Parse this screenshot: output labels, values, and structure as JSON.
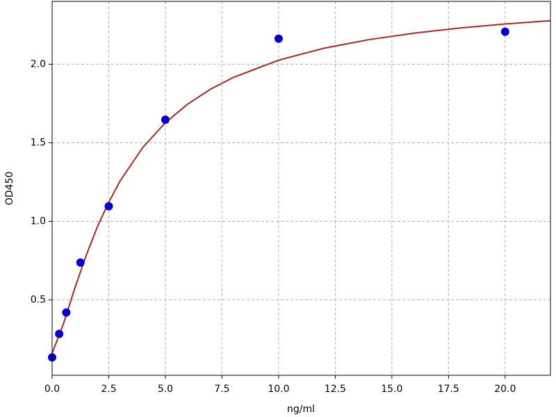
{
  "chart_data": {
    "type": "scatter",
    "xlabel": "ng/ml",
    "ylabel": "OD450",
    "xlim": [
      0,
      22
    ],
    "ylim": [
      0.02,
      2.4
    ],
    "xticks": [
      {
        "value": 0,
        "label": "0.0"
      },
      2.5,
      {
        "value": 5,
        "label": "5.0"
      },
      7.5,
      {
        "value": 10,
        "label": "10.0"
      },
      12.5,
      {
        "value": 15,
        "label": "15.0"
      },
      17.5,
      {
        "value": 20,
        "label": "20.0"
      }
    ],
    "yticks": [
      0.5,
      {
        "value": 1,
        "label": "1.0"
      },
      1.5,
      {
        "value": 2,
        "label": "2.0"
      }
    ],
    "grid": true,
    "series": [
      {
        "type": "scatter",
        "color": "#0000cc",
        "x": [
          0,
          0.3125,
          0.625,
          1.25,
          2.5,
          5,
          10,
          20
        ],
        "values": [
          0.134,
          0.284,
          0.42,
          0.738,
          1.096,
          1.647,
          2.163,
          2.207
        ]
      },
      {
        "type": "line",
        "color": "#b22222",
        "x": [
          0,
          0.5,
          1,
          1.5,
          2,
          2.5,
          3,
          4,
          5,
          6,
          7,
          8,
          10,
          12,
          14,
          16,
          18,
          20,
          22
        ],
        "values": [
          0.16,
          0.348,
          0.574,
          0.782,
          0.966,
          1.122,
          1.257,
          1.47,
          1.628,
          1.748,
          1.842,
          1.916,
          2.026,
          2.102,
          2.157,
          2.198,
          2.231,
          2.256,
          2.277
        ]
      }
    ]
  }
}
